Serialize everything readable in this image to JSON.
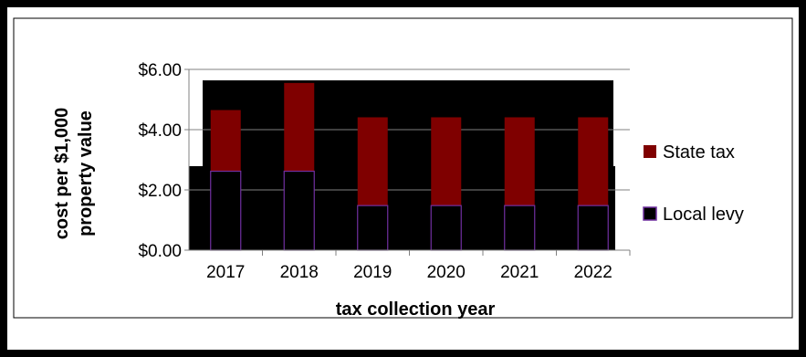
{
  "chart_data": {
    "type": "bar",
    "stacked": true,
    "categories": [
      "2017",
      "2018",
      "2019",
      "2020",
      "2021",
      "2022"
    ],
    "series": [
      {
        "name": "Local levy",
        "values": [
          2.62,
          2.62,
          1.48,
          1.48,
          1.48,
          1.48
        ]
      },
      {
        "name": "State tax",
        "values": [
          2.03,
          2.93,
          2.93,
          2.93,
          2.93,
          2.93
        ]
      }
    ],
    "xlabel": "tax collection year",
    "ylabel_lines": [
      "cost per $1,000",
      "property value"
    ],
    "yticks": [
      "$0.00",
      "$2.00",
      "$4.00",
      "$6.00"
    ],
    "ylim": [
      0,
      6
    ],
    "grid": true,
    "legend_position": "right",
    "colors": {
      "State tax": "#7f0000",
      "Local levy": "#000000",
      "local_outline": "#7030a0",
      "plot_background": "#000000",
      "frame": "#000000"
    }
  }
}
